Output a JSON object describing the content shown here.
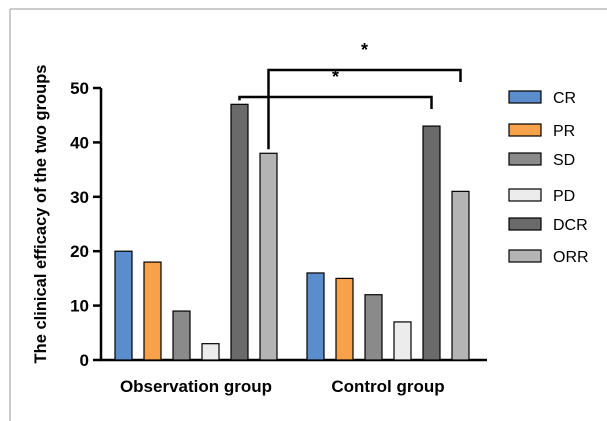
{
  "chart_data": {
    "type": "bar",
    "title": "",
    "ylabel": "The clinical efficacy of the two groups",
    "xlabel": "",
    "categories": [
      "Observation group",
      "Control group"
    ],
    "ylim": [
      0,
      50
    ],
    "yticks": [
      "0",
      "10",
      "20",
      "30",
      "40",
      "50"
    ],
    "grid": false,
    "legend_position": "right",
    "series": [
      {
        "name": "CR",
        "values": [
          20,
          16
        ],
        "color": "#5b8ccc"
      },
      {
        "name": "PR",
        "values": [
          18,
          15
        ],
        "color": "#f7a24b"
      },
      {
        "name": "SD",
        "values": [
          9,
          12
        ],
        "color": "#8a8a8a"
      },
      {
        "name": "PD",
        "values": [
          3,
          7
        ],
        "color": "#ececec"
      },
      {
        "name": "DCR",
        "values": [
          47,
          43
        ],
        "color": "#6a6a6a"
      },
      {
        "name": "ORR",
        "values": [
          38,
          31
        ],
        "color": "#b4b4b4"
      }
    ],
    "annotations": [
      {
        "text": "*",
        "from": {
          "category": "Observation group",
          "series": "DCR"
        },
        "to": {
          "category": "Control group",
          "series": "DCR"
        }
      },
      {
        "text": "*",
        "from": {
          "category": "Observation group",
          "series": "ORR"
        },
        "to": {
          "category": "Control group",
          "series": "ORR"
        }
      }
    ]
  }
}
